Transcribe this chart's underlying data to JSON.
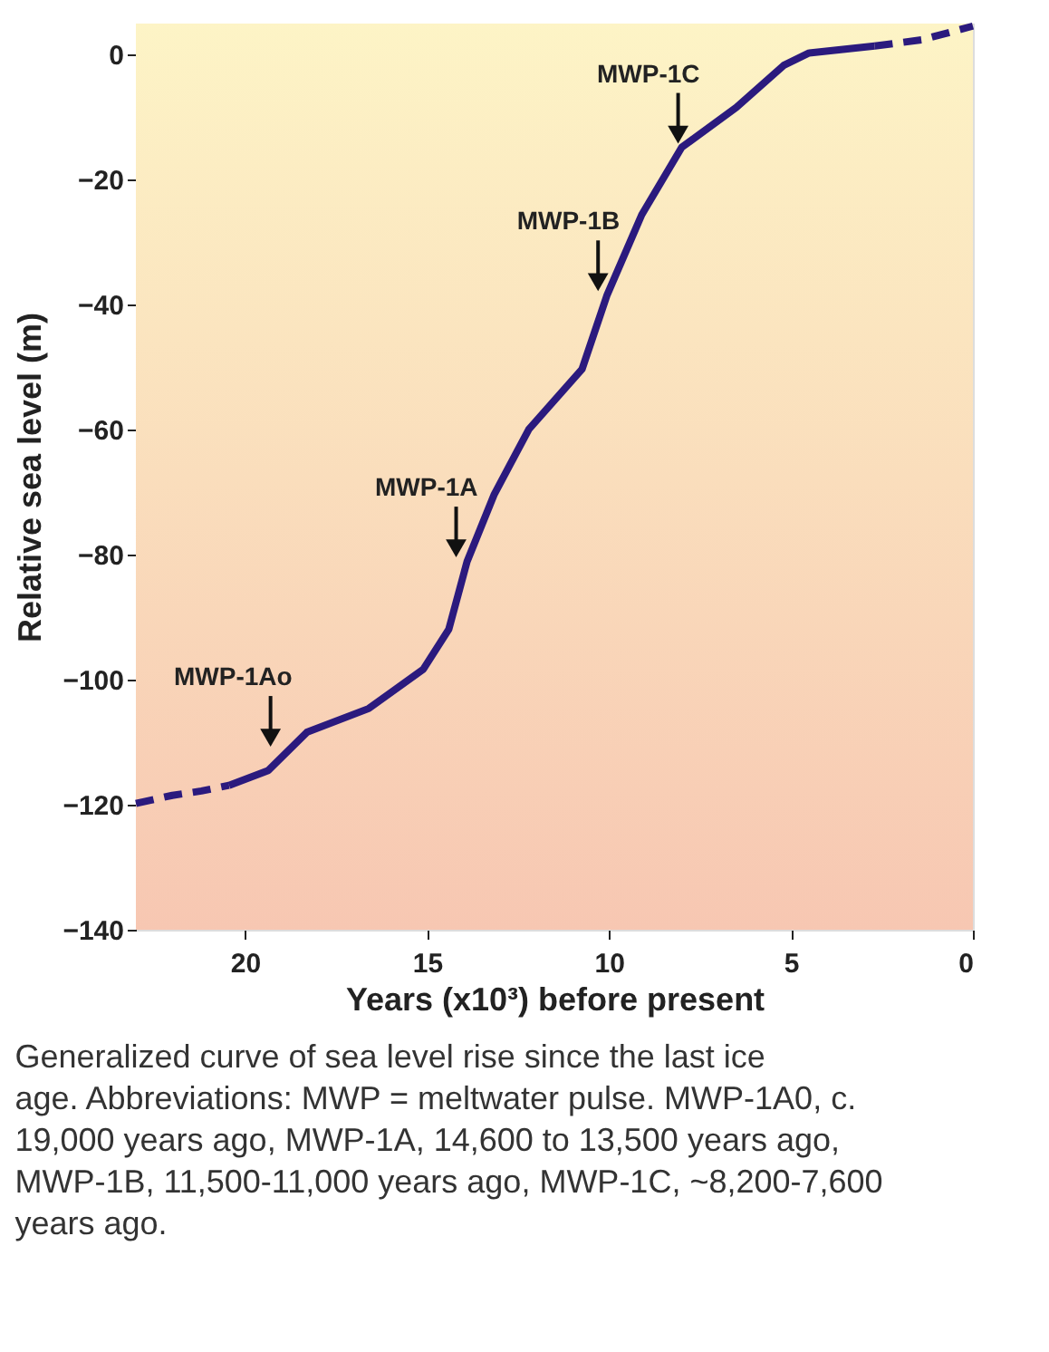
{
  "chart_data": {
    "type": "line",
    "xlabel": "Years (x10³) before present",
    "ylabel": "Relative sea level (m)",
    "xlim": [
      23,
      0
    ],
    "xticks": [
      20,
      15,
      10,
      5,
      0
    ],
    "ylim": [
      -140,
      5
    ],
    "yticks": [
      -140,
      -120,
      -100,
      -80,
      -60,
      -40,
      -20,
      0
    ],
    "series": [
      {
        "color": "#2b1a7e",
        "line_style": "dashed",
        "x": [
          23,
          22.0,
          21.2,
          20.44
        ],
        "values": [
          -119.8,
          -118.5,
          -117.8,
          -116.9
        ]
      },
      {
        "color": "#2b1a7e",
        "line_style": "solid",
        "x": [
          20.44,
          19.36,
          18.3,
          16.6,
          15.1,
          14.4,
          13.9,
          13.15,
          12.2,
          10.74,
          10.05,
          9.1,
          8.0,
          6.5,
          5.2,
          4.5,
          2.7
        ],
        "values": [
          -116.9,
          -114.5,
          -108.4,
          -104.6,
          -98.3,
          -91.9,
          -81.1,
          -70.3,
          -59.9,
          -50.3,
          -38.4,
          -25.6,
          -14.8,
          -8.4,
          -1.7,
          0.3,
          1.4
        ]
      },
      {
        "color": "#2b1a7e",
        "line_style": "dashed",
        "x": [
          2.7,
          1.4,
          0
        ],
        "values": [
          1.4,
          2.4,
          4.6
        ]
      }
    ],
    "annotations": [
      {
        "text": "MWP-1Ao",
        "x": 19.3,
        "y": -111.3
      },
      {
        "text": "MWP-1A",
        "x": 14.2,
        "y": -81
      },
      {
        "text": "MWP-1B",
        "x": 10.3,
        "y": -38.4
      },
      {
        "text": "MWP-1C",
        "x": 8.1,
        "y": -14.8
      },
      "Generalized curve of sea level rise since the last ice age. Abbreviations: MWP = meltwater pulse. MWP-1A0, c. 19,000 years ago, MWP-1A, 14,600 to 13,500 years ago, MWP-1B, 11,500-11,000 years ago, MWP-1C, ~8,200-7,600 years ago."
    ]
  }
}
